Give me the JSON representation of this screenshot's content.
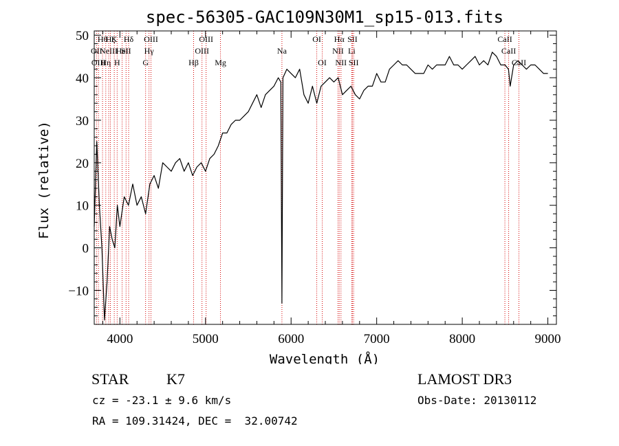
{
  "chart_data": {
    "type": "line",
    "title": "spec-56305-GAC109N30M1_sp15-013.fits",
    "xlabel": "Wavelength (Å)",
    "ylabel": "Flux (relative)",
    "xlim": [
      3700,
      9100
    ],
    "ylim": [
      -18,
      51
    ],
    "x_ticks": [
      4000,
      5000,
      6000,
      7000,
      8000,
      9000
    ],
    "y_ticks": [
      -10,
      0,
      10,
      20,
      30,
      40,
      50
    ],
    "y_tick_labels": [
      "−10",
      "0",
      "10",
      "20",
      "30",
      "40",
      "50"
    ],
    "grid": false,
    "series": [
      {
        "x": [
          3700,
          3730,
          3760,
          3790,
          3820,
          3850,
          3880,
          3910,
          3940,
          3970,
          4000,
          4050,
          4100,
          4150,
          4200,
          4250,
          4300,
          4350,
          4400,
          4450,
          4500,
          4550,
          4600,
          4650,
          4700,
          4750,
          4800,
          4850,
          4900,
          4950,
          5000,
          5050,
          5100,
          5150,
          5200,
          5250,
          5300,
          5350,
          5400,
          5450,
          5500,
          5550,
          5600,
          5650,
          5700,
          5750,
          5800,
          5850,
          5880,
          5893,
          5905,
          5950,
          6000,
          6050,
          6100,
          6150,
          6200,
          6250,
          6300,
          6350,
          6400,
          6450,
          6500,
          6550,
          6600,
          6650,
          6700,
          6750,
          6800,
          6850,
          6900,
          6950,
          7000,
          7050,
          7100,
          7150,
          7200,
          7250,
          7300,
          7350,
          7400,
          7450,
          7500,
          7550,
          7600,
          7650,
          7700,
          7750,
          7800,
          7850,
          7900,
          7950,
          8000,
          8050,
          8100,
          8150,
          8200,
          8250,
          8300,
          8350,
          8400,
          8450,
          8500,
          8540,
          8560,
          8600,
          8650,
          8700,
          8750,
          8800,
          8850,
          8900,
          8950,
          9000
        ],
        "y": [
          5,
          25,
          10,
          0,
          -17,
          -8,
          5,
          2,
          0,
          10,
          5,
          12,
          10,
          15,
          10,
          12,
          8,
          15,
          17,
          14,
          20,
          19,
          18,
          20,
          21,
          18,
          20,
          17,
          19,
          20,
          18,
          21,
          22,
          24,
          27,
          27,
          29,
          30,
          30,
          31,
          32,
          34,
          36,
          33,
          36,
          37,
          38,
          40,
          39,
          -13,
          40,
          42,
          41,
          40,
          42,
          36,
          34,
          38,
          34,
          38,
          39,
          40,
          39,
          40,
          36,
          37,
          38,
          36,
          35,
          37,
          38,
          38,
          41,
          39,
          39,
          42,
          43,
          44,
          43,
          43,
          42,
          41,
          41,
          41,
          43,
          42,
          43,
          43,
          43,
          45,
          43,
          43,
          42,
          43,
          44,
          45,
          43,
          44,
          43,
          46,
          45,
          43,
          43,
          42,
          38,
          43,
          44,
          43,
          42,
          43,
          43,
          42,
          41,
          41
        ]
      }
    ],
    "lines": [
      {
        "x": 3727,
        "label": "OII",
        "row": 1
      },
      {
        "x": 3750,
        "label": "OIII",
        "row": 2
      },
      {
        "x": 3797,
        "label": "Hθ",
        "row": 0
      },
      {
        "x": 3835,
        "label": "Hη",
        "row": 2
      },
      {
        "x": 3869,
        "label": "NeIII",
        "row": 1
      },
      {
        "x": 3889,
        "label": "Hζ",
        "row": 0
      },
      {
        "x": 3934,
        "label": "K",
        "row": 0
      },
      {
        "x": 3968,
        "label": "H",
        "row": 2
      },
      {
        "x": 4026,
        "label": "HeI",
        "row": 1
      },
      {
        "x": 4072,
        "label": "SII",
        "row": 1
      },
      {
        "x": 4102,
        "label": "Hδ",
        "row": 0
      },
      {
        "x": 4300,
        "label": "G",
        "row": 2
      },
      {
        "x": 4340,
        "label": "Hγ",
        "row": 1
      },
      {
        "x": 4363,
        "label": "OIII",
        "row": 0
      },
      {
        "x": 4861,
        "label": "Hβ",
        "row": 2
      },
      {
        "x": 4959,
        "label": "OIII",
        "row": 1
      },
      {
        "x": 5007,
        "label": "OIII",
        "row": 0
      },
      {
        "x": 5175,
        "label": "Mg",
        "row": 2
      },
      {
        "x": 5893,
        "label": "Na",
        "row": 1
      },
      {
        "x": 6300,
        "label": "OI",
        "row": 0
      },
      {
        "x": 6364,
        "label": "OI",
        "row": 2
      },
      {
        "x": 6548,
        "label": "NII",
        "row": 1
      },
      {
        "x": 6563,
        "label": "Hα",
        "row": 0
      },
      {
        "x": 6583,
        "label": "NII",
        "row": 2
      },
      {
        "x": 6708,
        "label": "Li",
        "row": 1
      },
      {
        "x": 6717,
        "label": "SII",
        "row": 0
      },
      {
        "x": 6731,
        "label": "SII",
        "row": 2
      },
      {
        "x": 8498,
        "label": "CaII",
        "row": 0
      },
      {
        "x": 8542,
        "label": "CaII",
        "row": 1
      },
      {
        "x": 8662,
        "label": "CaII",
        "row": 2
      }
    ]
  },
  "info": {
    "object_class": "STAR",
    "subclass": "K7",
    "survey": "LAMOST DR3",
    "redshift": "cz = -23.1 ± 9.6 km/s",
    "obs_date": "Obs-Date: 20130112",
    "coords": "RA = 109.31424, DEC =  32.00742"
  },
  "colors": {
    "line_marker": "#d40000",
    "spectrum": "#000000",
    "background": "#ffffff"
  }
}
